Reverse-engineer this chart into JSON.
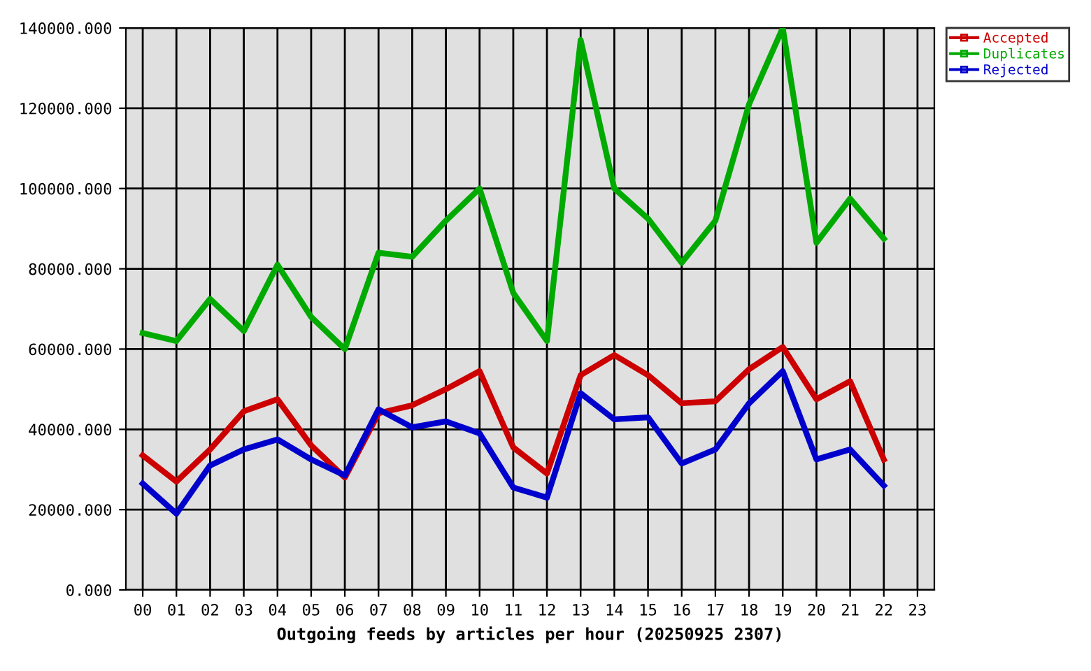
{
  "chart_data": {
    "type": "line",
    "xlabel": "Outgoing feeds by articles per hour (20250925 2307)",
    "categories": [
      "00",
      "01",
      "02",
      "03",
      "04",
      "05",
      "06",
      "07",
      "08",
      "09",
      "10",
      "11",
      "12",
      "13",
      "14",
      "15",
      "16",
      "17",
      "18",
      "19",
      "20",
      "21",
      "22",
      "23"
    ],
    "series": [
      {
        "name": "Accepted",
        "color": "#cc0000",
        "values": [
          33500,
          27000,
          35000,
          44500,
          47500,
          36000,
          28000,
          44000,
          46000,
          50000,
          54500,
          35500,
          29000,
          53500,
          58500,
          53500,
          46500,
          47000,
          55000,
          60500,
          47500,
          52000,
          32500,
          null
        ]
      },
      {
        "name": "Duplicates",
        "color": "#00aa00",
        "values": [
          64000,
          62000,
          72500,
          64500,
          81000,
          68000,
          60000,
          84000,
          83000,
          92000,
          100000,
          74000,
          62000,
          137000,
          100000,
          92500,
          81500,
          92000,
          121000,
          140000,
          86500,
          97500,
          87500,
          null
        ]
      },
      {
        "name": "Rejected",
        "color": "#0000cc",
        "values": [
          26500,
          19000,
          31000,
          35000,
          37500,
          32500,
          28500,
          45000,
          40500,
          42000,
          39000,
          25500,
          23000,
          49000,
          42500,
          43000,
          31500,
          35000,
          46500,
          54500,
          32500,
          35000,
          26000,
          null
        ]
      }
    ],
    "ylim": [
      0,
      140000
    ],
    "yticks": [
      {
        "value": 0,
        "label": "0.000"
      },
      {
        "value": 20000,
        "label": "20000.000"
      },
      {
        "value": 40000,
        "label": "40000.000"
      },
      {
        "value": 60000,
        "label": "60000.000"
      },
      {
        "value": 80000,
        "label": "80000.000"
      },
      {
        "value": 100000,
        "label": "100000.000"
      },
      {
        "value": 120000,
        "label": "120000.000"
      },
      {
        "value": 140000,
        "label": "140000.000"
      }
    ],
    "grid": true,
    "legend": "top right",
    "line_style": "solid"
  }
}
